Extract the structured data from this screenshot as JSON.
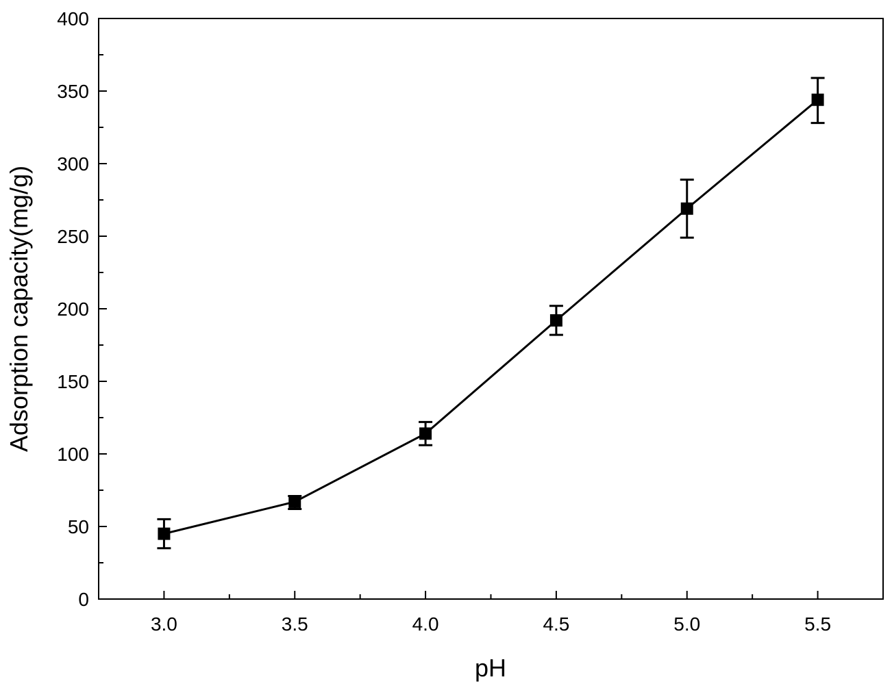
{
  "chart_data": {
    "type": "line",
    "xlabel": "pH",
    "ylabel": "Adsorption capacity(mg/g)",
    "xlim": [
      2.75,
      5.75
    ],
    "ylim": [
      0,
      400
    ],
    "x_ticks": [
      "3.0",
      "3.5",
      "4.0",
      "4.5",
      "5.0",
      "5.5"
    ],
    "x_tick_values": [
      3.0,
      3.5,
      4.0,
      4.5,
      5.0,
      5.5
    ],
    "x_minor_tick_values": [
      3.25,
      3.75,
      4.25,
      4.75,
      5.25
    ],
    "y_ticks": [
      "0",
      "50",
      "100",
      "150",
      "200",
      "250",
      "300",
      "350",
      "400"
    ],
    "y_tick_values": [
      0,
      50,
      100,
      150,
      200,
      250,
      300,
      350,
      400
    ],
    "y_minor_tick_values": [
      25,
      75,
      125,
      175,
      225,
      275,
      325,
      375
    ],
    "grid": false,
    "legend": "none",
    "marker": "square",
    "series": [
      {
        "x": [
          3.0,
          3.5,
          4.0,
          4.5,
          5.0,
          5.5
        ],
        "values": [
          45,
          67,
          114,
          192,
          269,
          344
        ],
        "error_low": [
          35,
          62,
          106,
          182,
          249,
          328
        ],
        "error_high": [
          55,
          71,
          122,
          202,
          289,
          359
        ],
        "color": "#000000"
      }
    ]
  }
}
